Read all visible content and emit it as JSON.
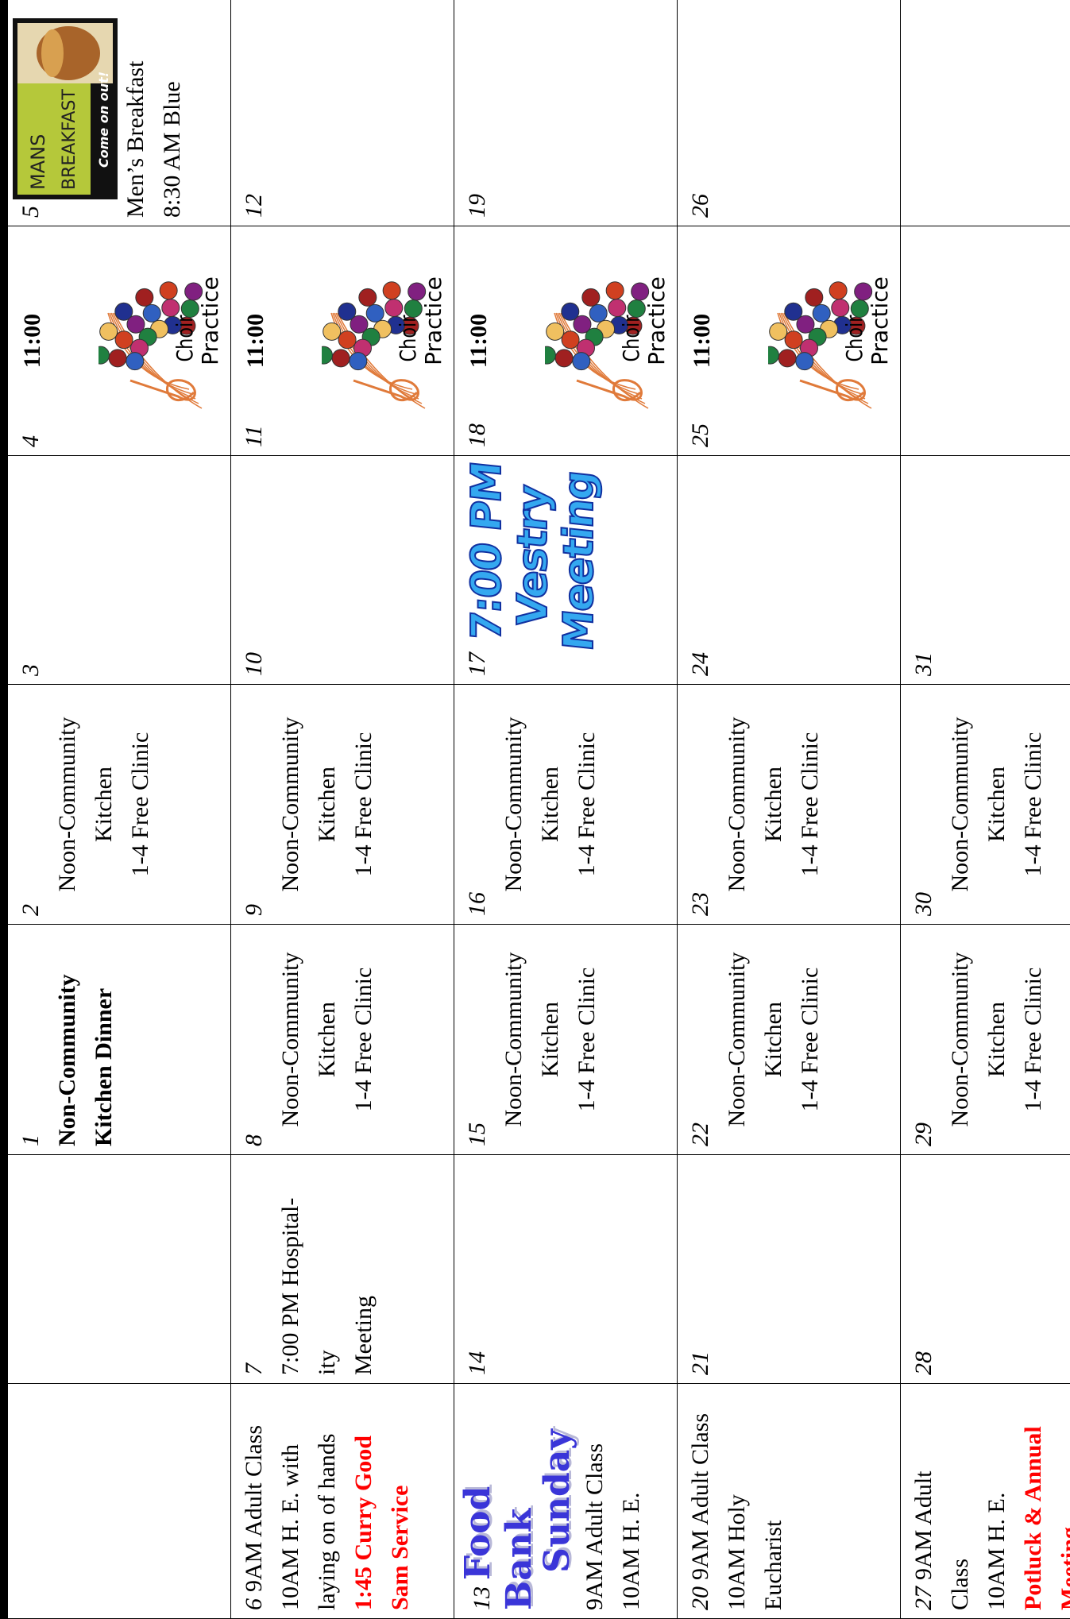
{
  "calendar": {
    "images": {
      "choir": {
        "lines": [
          "Choir",
          "Practice"
        ]
      },
      "breakfast": {
        "lines": [
          "MANS",
          "BREAKFAST",
          "Come on out!"
        ]
      }
    },
    "weeks": [
      [
        {},
        {},
        {
          "day": 1,
          "lines": [
            {
              "text": "Non-Community",
              "bold": true
            },
            {
              "text": "Kitchen Dinner",
              "bold": true
            }
          ]
        },
        {
          "day": 2,
          "lines": [
            "Noon-Community",
            "Kitchen",
            "1-4 Free Clinic"
          ],
          "align": "center"
        },
        {
          "day": 3
        },
        {
          "day": 4,
          "time": "11:00",
          "image": "choir"
        },
        {
          "day": 5,
          "image": "breakfast",
          "lines": [
            "Men’s Breakfast",
            "8:30 AM Blue"
          ]
        }
      ],
      [
        {
          "day": 6,
          "lines": [
            "9AM Adult Class",
            "10AM H. E. with",
            "laying on of hands",
            {
              "text": "1:45 Curry Good",
              "color": "red"
            },
            {
              "text": "Sam Service",
              "color": "red"
            }
          ]
        },
        {
          "day": 7,
          "lines": [
            "7:00 PM Hospital-",
            "ity",
            "Meeting"
          ]
        },
        {
          "day": 8,
          "lines": [
            "Noon-Community",
            "Kitchen",
            "1-4 Free Clinic"
          ],
          "align": "center"
        },
        {
          "day": 9,
          "lines": [
            "Noon-Community",
            "Kitchen",
            "1-4 Free Clinic"
          ],
          "align": "center"
        },
        {
          "day": 10
        },
        {
          "day": 11,
          "time": "11:00",
          "image": "choir"
        },
        {
          "day": 12
        }
      ],
      [
        {
          "day": 13,
          "wordart": [
            "Food Bank",
            "Sunday"
          ],
          "lines": [
            "9AM Adult Class",
            "10AM H. E."
          ]
        },
        {
          "day": 14
        },
        {
          "day": 15,
          "lines": [
            "Noon-Community",
            "Kitchen",
            "1-4 Free Clinic"
          ],
          "align": "center"
        },
        {
          "day": 16,
          "lines": [
            "Noon-Community",
            "Kitchen",
            "1-4 Free Clinic"
          ],
          "align": "center"
        },
        {
          "day": 17,
          "wordart": [
            "7:00 PM",
            "Vestry",
            "Meeting"
          ]
        },
        {
          "day": 18,
          "time": "11:00",
          "image": "choir"
        },
        {
          "day": 19
        }
      ],
      [
        {
          "day": 20,
          "lines": [
            "9AM Adult Class",
            "10AM Holy",
            "Eucharist"
          ]
        },
        {
          "day": 21
        },
        {
          "day": 22,
          "lines": [
            "Noon-Community",
            "Kitchen",
            "1-4 Free Clinic"
          ],
          "align": "center"
        },
        {
          "day": 23,
          "lines": [
            "Noon-Community",
            "Kitchen",
            "1-4 Free Clinic"
          ],
          "align": "center"
        },
        {
          "day": 24
        },
        {
          "day": 25,
          "time": "11:00",
          "image": "choir"
        },
        {
          "day": 26
        }
      ],
      [
        {
          "day": 27,
          "lines": [
            "9AM Adult",
            "Class",
            "10AM H. E.",
            {
              "text": "Potluck & Annual",
              "color": "red"
            },
            {
              "text": "Meeting",
              "color": "red"
            }
          ]
        },
        {
          "day": 28
        },
        {
          "day": 29,
          "lines": [
            "Noon-Community",
            "Kitchen",
            "1-4 Free Clinic"
          ],
          "align": "center"
        },
        {
          "day": 30,
          "lines": [
            "Noon-Community",
            "Kitchen",
            "1-4 Free Clinic"
          ],
          "align": "center"
        },
        {
          "day": 31
        },
        {},
        {}
      ]
    ]
  }
}
